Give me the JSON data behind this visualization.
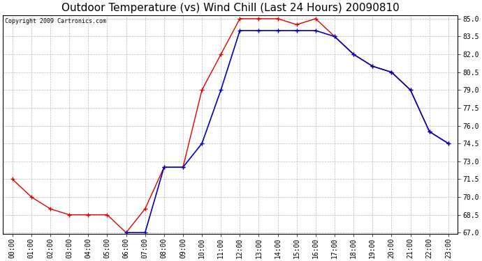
{
  "title": "Outdoor Temperature (vs) Wind Chill (Last 24 Hours) 20090810",
  "copyright_text": "Copyright 2009 Cartronics.com",
  "x_labels": [
    "00:00",
    "01:00",
    "02:00",
    "03:00",
    "04:00",
    "05:00",
    "06:00",
    "07:00",
    "08:00",
    "09:00",
    "10:00",
    "11:00",
    "12:00",
    "13:00",
    "14:00",
    "15:00",
    "16:00",
    "17:00",
    "18:00",
    "19:00",
    "20:00",
    "21:00",
    "22:00",
    "23:00"
  ],
  "temp_red": [
    71.5,
    70.0,
    69.0,
    68.5,
    68.5,
    68.5,
    67.0,
    69.0,
    72.5,
    72.5,
    79.0,
    82.0,
    85.0,
    85.0,
    85.0,
    84.5,
    85.0,
    83.5,
    82.0,
    81.0,
    80.5,
    79.0,
    75.5,
    74.5
  ],
  "wind_chill_blue": [
    null,
    null,
    null,
    null,
    null,
    null,
    67.0,
    67.0,
    72.5,
    72.5,
    74.5,
    79.0,
    84.0,
    84.0,
    84.0,
    84.0,
    84.0,
    83.5,
    82.0,
    81.0,
    80.5,
    79.0,
    75.5,
    74.5
  ],
  "ylim_min": 67.0,
  "ylim_max": 85.0,
  "ytick_min": 67.0,
  "ytick_max": 85.0,
  "ytick_step": 1.5,
  "red_color": "#dd0000",
  "blue_color": "#0000bb",
  "grid_color": "#bbbbbb",
  "background_color": "#ffffff",
  "title_fontsize": 11,
  "copyright_fontsize": 6,
  "tick_fontsize": 7
}
